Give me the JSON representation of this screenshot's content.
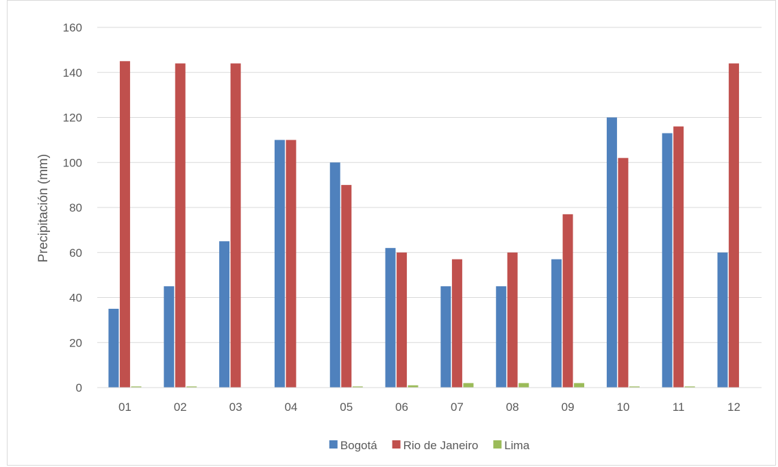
{
  "chart_data": {
    "type": "bar",
    "title": "",
    "xlabel": "",
    "ylabel": "Precipitación (mm)",
    "ylim": [
      0,
      160
    ],
    "yticks": [
      "0",
      "20",
      "40",
      "60",
      "80",
      "100",
      "120",
      "140",
      "160"
    ],
    "grid": true,
    "legend_position": "bottom",
    "categories": [
      "01",
      "02",
      "03",
      "04",
      "05",
      "06",
      "07",
      "08",
      "09",
      "10",
      "11",
      "12"
    ],
    "series": [
      {
        "name": "Bogotá",
        "color": "#4f81bd",
        "values": [
          35,
          45,
          65,
          110,
          100,
          62,
          45,
          45,
          57,
          120,
          113,
          60
        ]
      },
      {
        "name": "Rio de Janeiro",
        "color": "#c0504d",
        "values": [
          145,
          144,
          144,
          110,
          90,
          60,
          57,
          60,
          77,
          102,
          116,
          144
        ]
      },
      {
        "name": "Lima",
        "color": "#9bbb59",
        "values": [
          0.5,
          0.5,
          0,
          0,
          0.5,
          1,
          2,
          2,
          2,
          0.5,
          0.5,
          0
        ]
      }
    ]
  }
}
